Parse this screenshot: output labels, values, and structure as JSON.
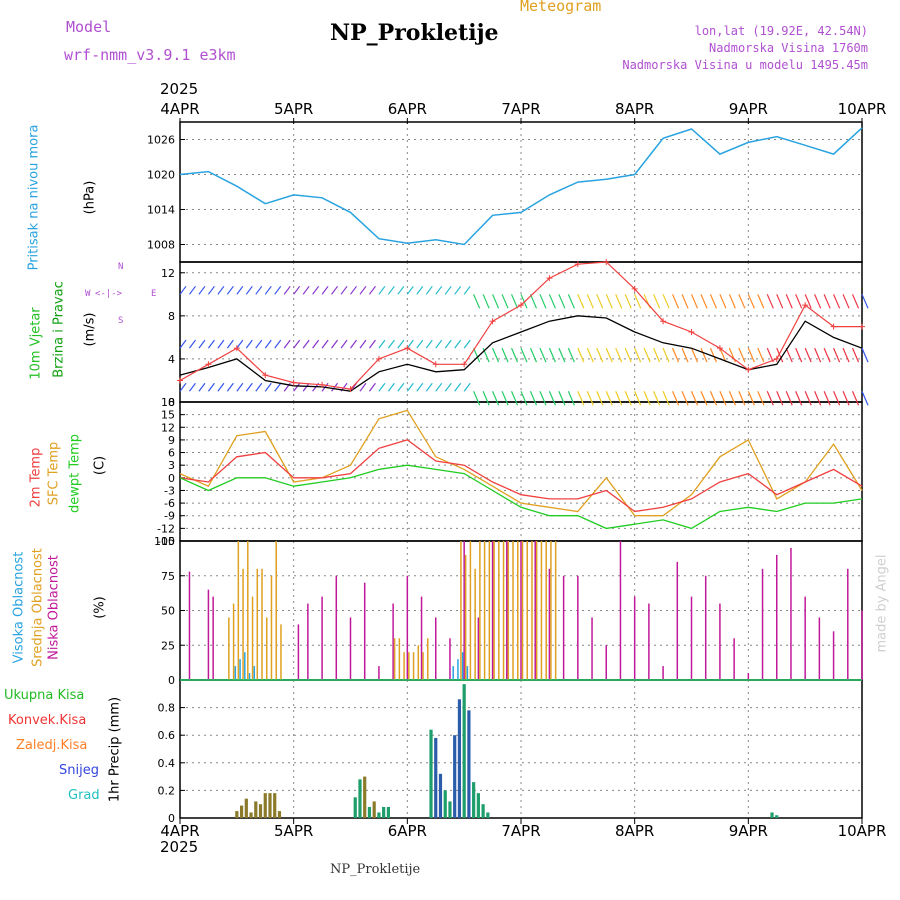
{
  "header": {
    "model_label": "Model",
    "model_name": "wrf-nmm_v3.9.1 e3km",
    "title": "NP_Prokletije",
    "meteogram_label": "Meteogram",
    "lonlat": "lon,lat (19.92E, 42.54N)",
    "elevation": "Nadmorska Visina 1760m",
    "model_elevation": "Nadmorska Visina u modelu 1495.45m",
    "year": "2025",
    "footer_station": "NP_Prokletije",
    "credit": "made by Angel"
  },
  "colors": {
    "pressure": "#29a3e0",
    "wind_label": "#22c022",
    "wind_label2": "#10a010",
    "t2m": "#f04040",
    "tsfc": "#e0a020",
    "dew": "#20cc20",
    "cloud_high": "#29a3e0",
    "cloud_mid": "#e0a020",
    "cloud_low": "#c0189a",
    "precip_total": "#22bb22",
    "precip_conv": "#ee3333",
    "precip_frozen": "#ff7f27",
    "snow": "#3344dd",
    "graupel": "#20c0c0",
    "purple": "#b050d0"
  },
  "chart_data": [
    {
      "id": "pressure",
      "type": "line",
      "title": "Pritisak na nivou mora",
      "ylabel": "(hPa)",
      "ylim": [
        1005,
        1029
      ],
      "yticks": [
        1008,
        1014,
        1020,
        1026
      ],
      "x_days": [
        "4APR",
        "5APR",
        "6APR",
        "7APR",
        "8APR",
        "9APR",
        "10APR"
      ],
      "x_hours": [
        0,
        6,
        12,
        18,
        24,
        30,
        36,
        42,
        48,
        54,
        60,
        66,
        72,
        78,
        84,
        90,
        96,
        102,
        108,
        114,
        120,
        126,
        132,
        138,
        144
      ],
      "values": [
        1020.0,
        1020.5,
        1018.0,
        1015.0,
        1016.5,
        1016.0,
        1013.5,
        1009.0,
        1008.2,
        1008.8,
        1008.0,
        1013.0,
        1013.5,
        1016.5,
        1018.7,
        1019.2,
        1020.0,
        1026.2,
        1027.8,
        1023.5,
        1025.5,
        1026.5,
        1025.0,
        1023.5,
        1028.0
      ]
    },
    {
      "id": "wind",
      "type": "line",
      "title": "10m Vjetar",
      "title2": "Brzina i Pravac",
      "ylabel": "(m/s)",
      "compass": [
        "N",
        "W",
        "E",
        "S"
      ],
      "ylim": [
        0,
        13
      ],
      "yticks": [
        0,
        4,
        8,
        12
      ],
      "x_hours": [
        0,
        6,
        12,
        18,
        24,
        30,
        36,
        42,
        48,
        54,
        60,
        66,
        72,
        78,
        84,
        90,
        96,
        102,
        108,
        114,
        120,
        126,
        132,
        138,
        144
      ],
      "speed": [
        2.5,
        3.2,
        4.0,
        2.0,
        1.5,
        1.4,
        1.0,
        2.8,
        3.5,
        2.8,
        3.0,
        5.5,
        6.5,
        7.5,
        8.0,
        7.8,
        6.5,
        5.5,
        5.0,
        4.0,
        3.0,
        3.5,
        7.5,
        6.0,
        5.0
      ],
      "gust": [
        2.0,
        3.5,
        5.0,
        2.5,
        1.8,
        1.6,
        1.2,
        4.0,
        5.0,
        3.5,
        3.5,
        7.5,
        9.0,
        11.5,
        12.8,
        13.0,
        10.5,
        7.5,
        6.5,
        5.0,
        3.0,
        4.0,
        9.0,
        7.0,
        7.0
      ]
    },
    {
      "id": "temperature",
      "type": "line",
      "ylabel": "(C)",
      "labels": [
        "2m Temp",
        "SFC Temp",
        "dewpt Temp"
      ],
      "ylim": [
        -15,
        18
      ],
      "yticks": [
        -15,
        -12,
        -9,
        -6,
        -3,
        0,
        3,
        6,
        9,
        12,
        15,
        18
      ],
      "x_hours": [
        0,
        6,
        12,
        18,
        24,
        30,
        36,
        42,
        48,
        54,
        60,
        66,
        72,
        78,
        84,
        90,
        96,
        102,
        108,
        114,
        120,
        126,
        132,
        138,
        144
      ],
      "t2m": [
        0.0,
        -1.0,
        5.0,
        6.0,
        0.0,
        0.0,
        1.0,
        7.0,
        9.0,
        4.0,
        3.0,
        -1.0,
        -4.0,
        -5.0,
        -5.0,
        -3.0,
        -8.0,
        -7.0,
        -5.0,
        -1.0,
        1.0,
        -4.0,
        -1.0,
        2.0,
        -2.0
      ],
      "tsfc": [
        1.0,
        -2.0,
        10.0,
        11.0,
        -1.0,
        0.0,
        3.0,
        14.0,
        16.0,
        5.0,
        2.0,
        -2.0,
        -6.0,
        -7.0,
        -8.0,
        0.0,
        -9.0,
        -9.0,
        -4.0,
        5.0,
        9.0,
        -5.0,
        -1.0,
        8.0,
        -3.0
      ],
      "dew": [
        0.0,
        -3.0,
        0.0,
        0.0,
        -2.0,
        -1.0,
        0.0,
        2.0,
        3.0,
        2.0,
        1.0,
        -3.0,
        -7.0,
        -9.0,
        -9.0,
        -12.0,
        -11.0,
        -10.0,
        -12.0,
        -8.0,
        -7.0,
        -8.0,
        -6.0,
        -6.0,
        -5.0
      ]
    },
    {
      "id": "clouds",
      "type": "bar",
      "ylabel": "(%)",
      "labels": [
        "Visoka Oblacnost",
        "Srednja Oblacnost",
        "Niska Oblacnost"
      ],
      "ylim": [
        0,
        100
      ],
      "yticks": [
        0,
        25,
        50,
        75,
        100
      ],
      "high": {
        "hours": [
          12,
          13,
          14,
          15,
          16,
          58,
          59,
          60,
          61
        ],
        "values": [
          10,
          15,
          20,
          5,
          10,
          10,
          15,
          20,
          10
        ]
      },
      "mid": {
        "hours": [
          10,
          11,
          12,
          13,
          14,
          15,
          16,
          17,
          18,
          19,
          20,
          21,
          45,
          46,
          47,
          48,
          49,
          50,
          51,
          52,
          59,
          60,
          61,
          62,
          63,
          64,
          65,
          66,
          67,
          68,
          69,
          70,
          71,
          72,
          73,
          74,
          75,
          76,
          77,
          78,
          79
        ],
        "values": [
          45,
          55,
          100,
          80,
          100,
          60,
          80,
          80,
          45,
          75,
          100,
          40,
          30,
          30,
          20,
          20,
          20,
          25,
          20,
          30,
          100,
          90,
          100,
          80,
          100,
          100,
          100,
          100,
          100,
          100,
          100,
          100,
          100,
          100,
          100,
          100,
          100,
          100,
          100,
          100,
          100
        ]
      },
      "low": {
        "hours": [
          2,
          6,
          7,
          25,
          27,
          30,
          33,
          36,
          39,
          42,
          45,
          48,
          51,
          54,
          57,
          60,
          63,
          66,
          69,
          72,
          75,
          78,
          81,
          84,
          87,
          90,
          93,
          96,
          99,
          102,
          105,
          108,
          111,
          114,
          117,
          120,
          123,
          126,
          129,
          132,
          135,
          138,
          141,
          144
        ],
        "values": [
          78,
          65,
          60,
          40,
          55,
          60,
          75,
          45,
          70,
          10,
          55,
          75,
          60,
          45,
          30,
          100,
          45,
          100,
          100,
          100,
          100,
          80,
          75,
          75,
          45,
          25,
          100,
          60,
          55,
          10,
          85,
          60,
          75,
          55,
          30,
          5,
          80,
          90,
          95,
          60,
          45,
          35,
          80,
          50
        ]
      }
    },
    {
      "id": "precip",
      "type": "bar",
      "ylabel": "1hr Precip (mm)",
      "labels": [
        "Ukupna Kisa",
        "Konvek.Kisa",
        "Zaledj.Kisa",
        "Snijeg",
        "Grad"
      ],
      "ylim": [
        0,
        1.0
      ],
      "yticks": [
        0,
        0.2,
        0.4,
        0.6,
        0.8
      ],
      "bars": [
        {
          "hour": 12,
          "value": 0.05,
          "kind": "frozen"
        },
        {
          "hour": 13,
          "value": 0.09,
          "kind": "frozen"
        },
        {
          "hour": 14,
          "value": 0.14,
          "kind": "frozen"
        },
        {
          "hour": 15,
          "value": 0.04,
          "kind": "frozen"
        },
        {
          "hour": 16,
          "value": 0.12,
          "kind": "frozen"
        },
        {
          "hour": 17,
          "value": 0.1,
          "kind": "frozen"
        },
        {
          "hour": 18,
          "value": 0.18,
          "kind": "frozen"
        },
        {
          "hour": 19,
          "value": 0.18,
          "kind": "frozen"
        },
        {
          "hour": 20,
          "value": 0.18,
          "kind": "frozen"
        },
        {
          "hour": 21,
          "value": 0.05,
          "kind": "frozen"
        },
        {
          "hour": 37,
          "value": 0.15,
          "kind": "total"
        },
        {
          "hour": 38,
          "value": 0.28,
          "kind": "total"
        },
        {
          "hour": 39,
          "value": 0.3,
          "kind": "frozen"
        },
        {
          "hour": 40,
          "value": 0.08,
          "kind": "total"
        },
        {
          "hour": 41,
          "value": 0.12,
          "kind": "frozen"
        },
        {
          "hour": 42,
          "value": 0.04,
          "kind": "total"
        },
        {
          "hour": 43,
          "value": 0.08,
          "kind": "total"
        },
        {
          "hour": 44,
          "value": 0.08,
          "kind": "total"
        },
        {
          "hour": 53,
          "value": 0.64,
          "kind": "total"
        },
        {
          "hour": 54,
          "value": 0.58,
          "kind": "snow"
        },
        {
          "hour": 55,
          "value": 0.32,
          "kind": "snow"
        },
        {
          "hour": 56,
          "value": 0.2,
          "kind": "total"
        },
        {
          "hour": 57,
          "value": 0.12,
          "kind": "total"
        },
        {
          "hour": 58,
          "value": 0.6,
          "kind": "snow"
        },
        {
          "hour": 59,
          "value": 0.86,
          "kind": "snow"
        },
        {
          "hour": 60,
          "value": 0.97,
          "kind": "total"
        },
        {
          "hour": 61,
          "value": 0.78,
          "kind": "snow"
        },
        {
          "hour": 62,
          "value": 0.26,
          "kind": "total"
        },
        {
          "hour": 63,
          "value": 0.18,
          "kind": "total"
        },
        {
          "hour": 64,
          "value": 0.1,
          "kind": "total"
        },
        {
          "hour": 65,
          "value": 0.04,
          "kind": "total"
        },
        {
          "hour": 125,
          "value": 0.04,
          "kind": "total"
        },
        {
          "hour": 126,
          "value": 0.02,
          "kind": "total"
        }
      ]
    }
  ]
}
